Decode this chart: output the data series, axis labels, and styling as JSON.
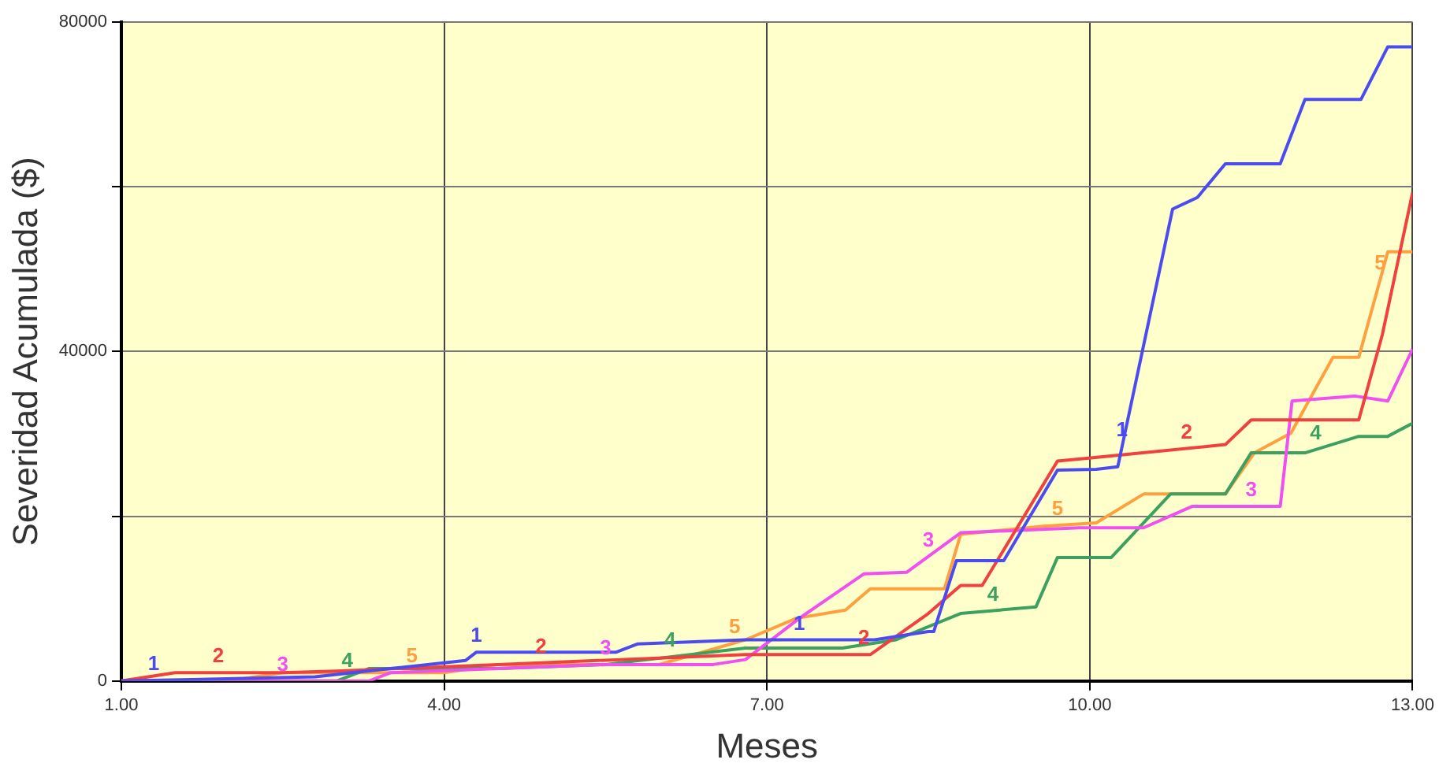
{
  "chart_data": {
    "type": "line",
    "xlabel": "Meses",
    "ylabel": "Severidad Acumulada ($)",
    "xlim": [
      1,
      13
    ],
    "xticks": [
      {
        "value": 1,
        "label": "1.00"
      },
      {
        "value": 4,
        "label": "4.00"
      },
      {
        "value": 7,
        "label": "7.00"
      },
      {
        "value": 10,
        "label": "10.00"
      },
      {
        "value": 13,
        "label": "13.00"
      }
    ],
    "ylim": [
      0,
      80000
    ],
    "yticks": [
      0,
      {
        "value": 20000,
        "label": null
      },
      40000,
      {
        "value": 60000,
        "label": null
      },
      80000
    ],
    "grid": true,
    "legend": false,
    "marker": "none",
    "line_style": "solid",
    "series": [
      {
        "name": "1",
        "color": "#4b4bf0",
        "x": [
          1,
          2.8,
          3.5,
          4.2,
          4.3,
          5.6,
          5.8,
          6.8,
          8.0,
          8.5,
          8.55,
          8.76,
          9.2,
          9.7,
          10.06,
          10.26,
          10.77,
          11.0,
          11.26,
          11.77,
          12.0,
          12.52,
          12.77,
          13
        ],
        "values": [
          0,
          500,
          1500,
          2500,
          3500,
          3500,
          4500,
          5000,
          5000,
          6000,
          6000,
          14600,
          14600,
          25600,
          25700,
          26000,
          57300,
          58700,
          62800,
          62800,
          70600,
          70600,
          77000,
          77000
        ]
      },
      {
        "name": "2",
        "color": "#f04040",
        "x": [
          1,
          1.5,
          2.5,
          3,
          4.5,
          6.8,
          7.96,
          8.5,
          8.8,
          9.0,
          9.7,
          10.03,
          11.26,
          11.5,
          12.5,
          12.72,
          13
        ],
        "values": [
          0,
          1000,
          1000,
          1200,
          2000,
          3200,
          3200,
          8200,
          11600,
          11600,
          26700,
          27100,
          28700,
          31700,
          31700,
          42100,
          59300
        ]
      },
      {
        "name": "3",
        "color": "#f050f0",
        "x": [
          1,
          3.3,
          3.5,
          5.5,
          6.5,
          6.8,
          7.3,
          7.9,
          8.3,
          8.8,
          9.9,
          10.5,
          10.95,
          11.77,
          11.88,
          12.46,
          12.77,
          13
        ],
        "values": [
          0,
          0,
          1000,
          2000,
          2000,
          2600,
          7600,
          13000,
          13200,
          18000,
          18600,
          18600,
          21200,
          21200,
          34000,
          34600,
          34000,
          40300
        ]
      },
      {
        "name": "4",
        "color": "#3ca060",
        "x": [
          1,
          3,
          3.3,
          4.5,
          5.5,
          6.8,
          7.7,
          8.2,
          8.8,
          9.5,
          9.7,
          10.2,
          10.75,
          11.26,
          11.5,
          12.0,
          12.5,
          12.77,
          13
        ],
        "values": [
          0,
          0,
          1500,
          1500,
          2000,
          4000,
          4000,
          5000,
          8200,
          9000,
          15000,
          15000,
          22700,
          22700,
          27700,
          27700,
          29700,
          29700,
          31300
        ]
      },
      {
        "name": "5",
        "color": "#ffa040",
        "x": [
          1,
          2,
          2.5,
          4,
          4.5,
          6,
          6.8,
          7.27,
          7.73,
          7.96,
          8.65,
          8.8,
          9.57,
          10.06,
          10.5,
          11.26,
          11.53,
          11.87,
          12.26,
          12.5,
          12.77,
          13
        ],
        "values": [
          0,
          0,
          1000,
          1000,
          2000,
          2000,
          5000,
          7600,
          8600,
          11200,
          11200,
          17800,
          18800,
          19200,
          22700,
          22700,
          27700,
          30100,
          39300,
          39300,
          52100,
          52100
        ]
      }
    ]
  }
}
